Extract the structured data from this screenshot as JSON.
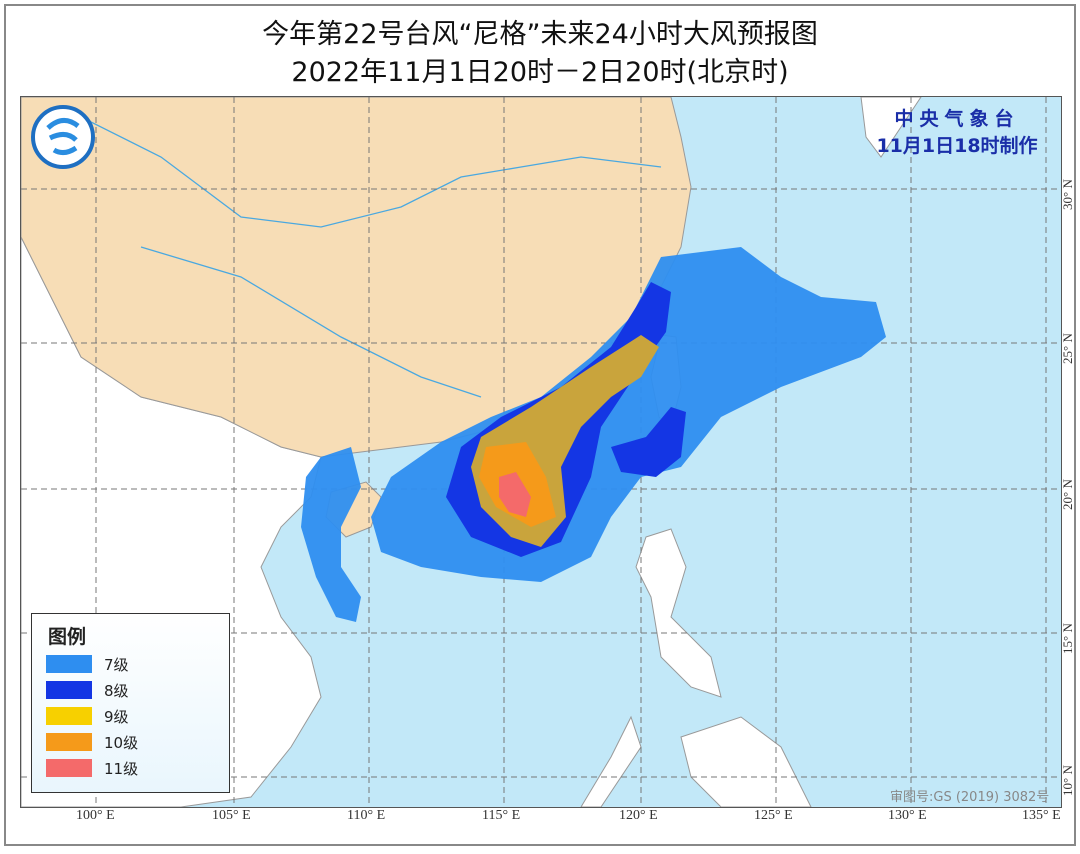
{
  "title": {
    "line1": "今年第22号台风“尼格”未来24小时大风预报图",
    "line2": "2022年11月1日20时－2日20时(北京时)"
  },
  "agency": {
    "name": "中央气象台",
    "made": "11月1日18时制作"
  },
  "approval_number": "审图号:GS (2019) 3082号",
  "axes": {
    "longitude_labels": [
      "100° E",
      "105° E",
      "110° E",
      "115° E",
      "120° E",
      "125° E",
      "130° E",
      "135° E"
    ],
    "latitude_labels": [
      "30° N",
      "25° N",
      "20° N",
      "15° N",
      "10° N"
    ]
  },
  "legend": {
    "title": "图例",
    "items": [
      {
        "label": "7级",
        "color": "#2e8ef0"
      },
      {
        "label": "8级",
        "color": "#1436e4"
      },
      {
        "label": "9级",
        "color": "#f7d000"
      },
      {
        "label": "10级",
        "color": "#f59a1a"
      },
      {
        "label": "11级",
        "color": "#f46a6a"
      }
    ]
  },
  "colors": {
    "ocean": "#c2e8f8",
    "china_land": "#f7ddb6",
    "other_land": "#ffffff",
    "level9_on_map": "#c9a43c"
  }
}
